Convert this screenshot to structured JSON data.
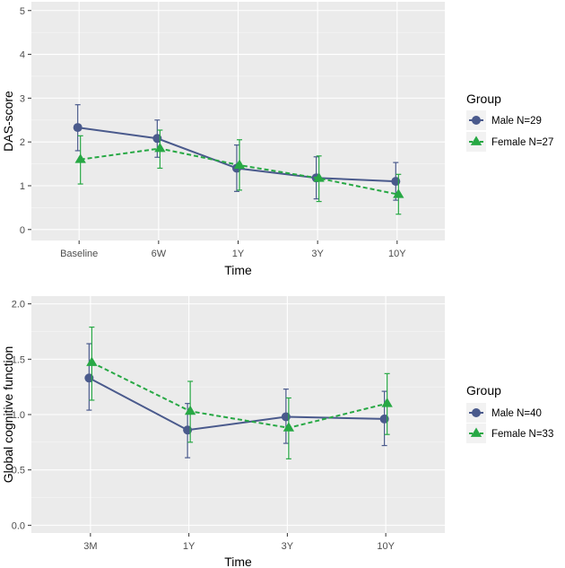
{
  "chart_data": [
    {
      "type": "line",
      "title": "",
      "xlabel": "Time",
      "ylabel": "DAS-score",
      "categories": [
        "Baseline",
        "6W",
        "1Y",
        "3Y",
        "10Y"
      ],
      "ylim": [
        -0.25,
        5.2
      ],
      "yticks": [
        0,
        1,
        2,
        3,
        4,
        5
      ],
      "grid": true,
      "legend": {
        "title": "Group",
        "position": "right"
      },
      "series": [
        {
          "name": "Male N=29",
          "color": "#4a5a8c",
          "marker": "circle",
          "linestyle": "solid",
          "values": [
            2.33,
            2.08,
            1.4,
            1.18,
            1.1
          ],
          "lower": [
            1.8,
            1.65,
            0.87,
            0.7,
            0.67
          ],
          "upper": [
            2.85,
            2.5,
            1.93,
            1.66,
            1.53
          ]
        },
        {
          "name": "Female N=27",
          "color": "#27a844",
          "marker": "triangle",
          "linestyle": "dashed",
          "values": [
            1.6,
            1.85,
            1.47,
            1.17,
            0.8
          ],
          "lower": [
            1.04,
            1.4,
            0.9,
            0.64,
            0.35
          ],
          "upper": [
            2.14,
            2.27,
            2.05,
            1.68,
            1.26
          ]
        }
      ]
    },
    {
      "type": "line",
      "title": "",
      "xlabel": "Time",
      "ylabel": "Global cognitive function",
      "categories": [
        "3M",
        "1Y",
        "3Y",
        "10Y"
      ],
      "ylim": [
        -0.07,
        2.07
      ],
      "yticks": [
        "0.0",
        "0.5",
        "1.0",
        "1.5",
        "2.0"
      ],
      "grid": true,
      "legend": {
        "title": "Group",
        "position": "right"
      },
      "series": [
        {
          "name": "Male N=40",
          "color": "#4a5a8c",
          "marker": "circle",
          "linestyle": "solid",
          "values": [
            1.33,
            0.86,
            0.98,
            0.96
          ],
          "lower": [
            1.04,
            0.61,
            0.74,
            0.72
          ],
          "upper": [
            1.64,
            1.1,
            1.23,
            1.21
          ]
        },
        {
          "name": "Female N=33",
          "color": "#27a844",
          "marker": "triangle",
          "linestyle": "dashed",
          "values": [
            1.47,
            1.03,
            0.88,
            1.1
          ],
          "lower": [
            1.13,
            0.75,
            0.6,
            0.82
          ],
          "upper": [
            1.79,
            1.3,
            1.15,
            1.37
          ]
        }
      ]
    }
  ]
}
